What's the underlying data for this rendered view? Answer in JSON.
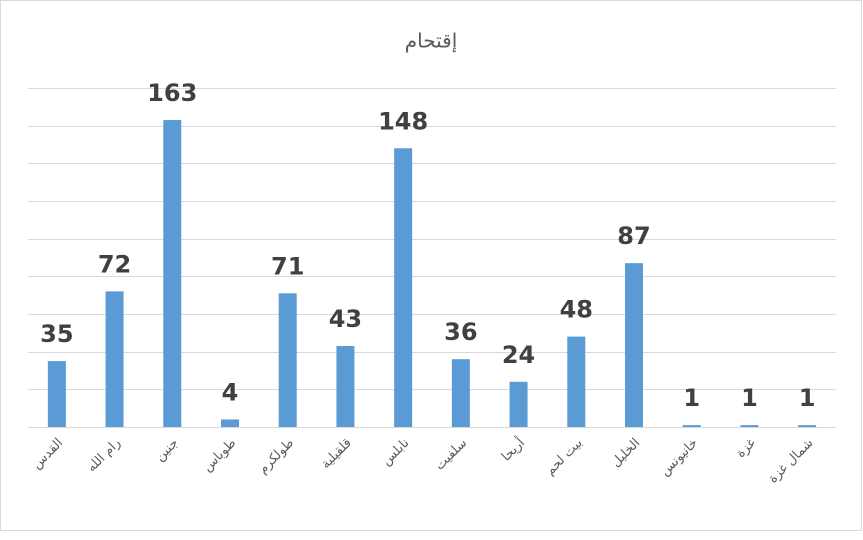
{
  "chart_data": {
    "type": "bar",
    "title": "إقتحام",
    "categories": [
      "القدس",
      "رام الله",
      "جنين",
      "طوباس",
      "طولكرم",
      "قلقيلية",
      "نابلس",
      "سلفيت",
      "أريحا",
      "بيت لحم",
      "الخليل",
      "خانيونس",
      "غزة",
      "شمال غزة"
    ],
    "values": [
      35,
      72,
      163,
      4,
      71,
      43,
      148,
      36,
      24,
      48,
      87,
      1,
      1,
      1
    ],
    "color": "#5b9bd5",
    "ylim": [
      0,
      180
    ],
    "yticks": [
      0,
      20,
      40,
      60,
      80,
      100,
      120,
      140,
      160,
      180
    ],
    "grid": true
  }
}
